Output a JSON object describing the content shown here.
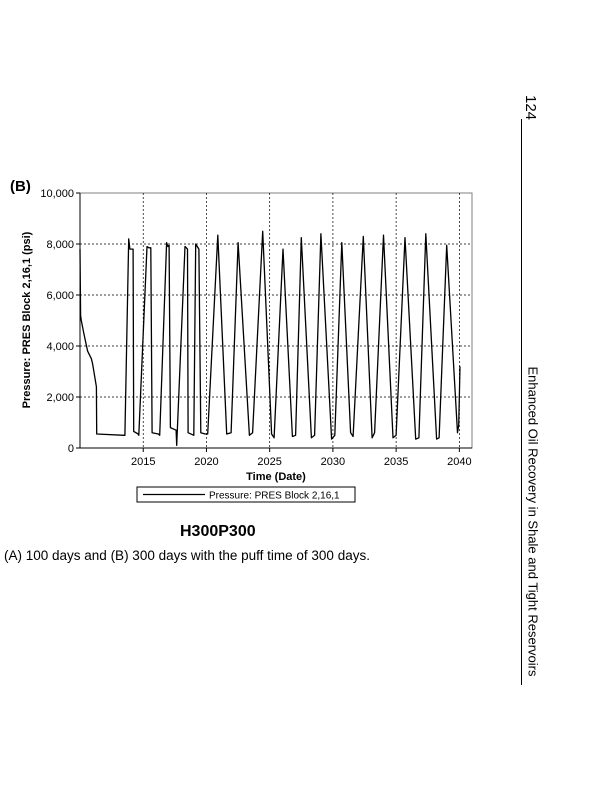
{
  "page": {
    "page_number": "124",
    "running_head": "Enhanced Oil Recovery in Shale and Tight Reservoirs",
    "panel_label": "(B)",
    "figure_title": "H300P300",
    "caption": "(A) 100 days and (B) 300 days with the puff time of 300 days."
  },
  "chart_data": {
    "type": "line",
    "title": "",
    "xlabel": "Time (Date)",
    "ylabel": "Pressure: PRES Block 2,16,1 (psi)",
    "xlim": [
      2010,
      2041
    ],
    "ylim": [
      0,
      10000
    ],
    "x_ticks": [
      "2015",
      "2020",
      "2025",
      "2030",
      "2035",
      "2040"
    ],
    "x_tick_values": [
      2015,
      2020,
      2025,
      2030,
      2035,
      2040
    ],
    "y_ticks": [
      "0",
      "2,000",
      "4,000",
      "6,000",
      "8,000",
      "10,000"
    ],
    "y_tick_values": [
      0,
      2000,
      4000,
      6000,
      8000,
      10000
    ],
    "grid": true,
    "legend_position": "bottom",
    "series": [
      {
        "name": "Pressure: PRES Block 2,16,1",
        "color": "#000000",
        "points": [
          [
            2010.0,
            7800
          ],
          [
            2010.05,
            5200
          ],
          [
            2010.1,
            5000
          ],
          [
            2010.3,
            4500
          ],
          [
            2010.6,
            3800
          ],
          [
            2010.9,
            3500
          ],
          [
            2011.0,
            3300
          ],
          [
            2011.3,
            2400
          ],
          [
            2011.32,
            550
          ],
          [
            2013.5,
            500
          ],
          [
            2013.55,
            500
          ],
          [
            2013.85,
            8200
          ],
          [
            2013.95,
            7800
          ],
          [
            2014.2,
            7800
          ],
          [
            2014.25,
            650
          ],
          [
            2014.6,
            550
          ],
          [
            2014.65,
            500
          ],
          [
            2015.3,
            7900
          ],
          [
            2015.45,
            7850
          ],
          [
            2015.6,
            7850
          ],
          [
            2015.7,
            600
          ],
          [
            2016.2,
            550
          ],
          [
            2016.3,
            500
          ],
          [
            2016.85,
            8050
          ],
          [
            2016.95,
            7900
          ],
          [
            2017.05,
            7950
          ],
          [
            2017.15,
            800
          ],
          [
            2017.6,
            700
          ],
          [
            2017.65,
            100
          ],
          [
            2018.3,
            7900
          ],
          [
            2018.5,
            7800
          ],
          [
            2018.55,
            600
          ],
          [
            2019.0,
            500
          ],
          [
            2019.15,
            8000
          ],
          [
            2019.4,
            7800
          ],
          [
            2019.55,
            600
          ],
          [
            2019.9,
            550
          ],
          [
            2020.1,
            550
          ],
          [
            2020.9,
            8350
          ],
          [
            2021.6,
            550
          ],
          [
            2021.95,
            600
          ],
          [
            2022.5,
            8050
          ],
          [
            2023.4,
            500
          ],
          [
            2023.65,
            600
          ],
          [
            2024.45,
            8500
          ],
          [
            2025.15,
            550
          ],
          [
            2025.35,
            400
          ],
          [
            2026.05,
            7800
          ],
          [
            2026.8,
            450
          ],
          [
            2027.05,
            500
          ],
          [
            2027.5,
            8250
          ],
          [
            2028.3,
            400
          ],
          [
            2028.55,
            500
          ],
          [
            2029.05,
            8400
          ],
          [
            2029.9,
            350
          ],
          [
            2030.15,
            500
          ],
          [
            2030.7,
            8050
          ],
          [
            2031.4,
            600
          ],
          [
            2031.6,
            450
          ],
          [
            2032.4,
            8300
          ],
          [
            2033.1,
            400
          ],
          [
            2033.3,
            600
          ],
          [
            2034.0,
            8350
          ],
          [
            2034.75,
            400
          ],
          [
            2035.0,
            500
          ],
          [
            2035.7,
            8250
          ],
          [
            2036.55,
            350
          ],
          [
            2036.8,
            400
          ],
          [
            2037.35,
            8400
          ],
          [
            2038.2,
            350
          ],
          [
            2038.4,
            400
          ],
          [
            2039.0,
            7950
          ],
          [
            2039.85,
            600
          ],
          [
            2039.95,
            900
          ],
          [
            2040.05,
            3200
          ]
        ]
      }
    ]
  }
}
